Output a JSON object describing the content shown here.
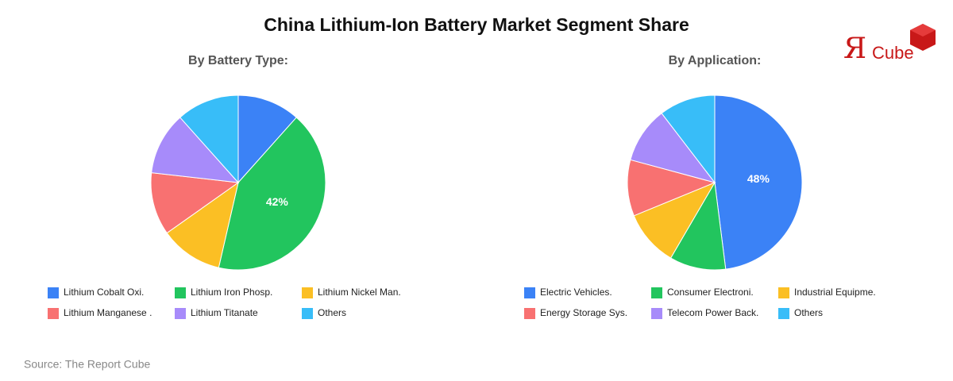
{
  "title": "China Lithium-Ion Battery Market Segment Share",
  "logo": {
    "mark": "Я",
    "text": "Cube"
  },
  "source": "Source: The Report Cube",
  "chart_data": [
    {
      "type": "pie",
      "title": "By Battery Type:",
      "categories": [
        "Lithium Cobalt Oxi.",
        "Lithium Iron Phosp.",
        "Lithium Nickel Man.",
        "Lithium Manganese .",
        "Lithium Titanate",
        "Others"
      ],
      "values": [
        11.6,
        42,
        11.6,
        11.6,
        11.6,
        11.6
      ],
      "value_labels": [
        null,
        "42%",
        null,
        null,
        null,
        null
      ],
      "colors": [
        "#3b82f6",
        "#22c55e",
        "#fbbf24",
        "#f87171",
        "#a78bfa",
        "#38bdf8"
      ]
    },
    {
      "type": "pie",
      "title": "By Application:",
      "categories": [
        "Electric Vehicles.",
        "Consumer Electroni.",
        "Industrial Equipme.",
        "Energy Storage Sys.",
        "Telecom Power Back.",
        "Others"
      ],
      "values": [
        48,
        10.4,
        10.4,
        10.4,
        10.4,
        10.4
      ],
      "value_labels": [
        "48%",
        null,
        null,
        null,
        null,
        null
      ],
      "colors": [
        "#3b82f6",
        "#22c55e",
        "#fbbf24",
        "#f87171",
        "#a78bfa",
        "#38bdf8"
      ]
    }
  ]
}
